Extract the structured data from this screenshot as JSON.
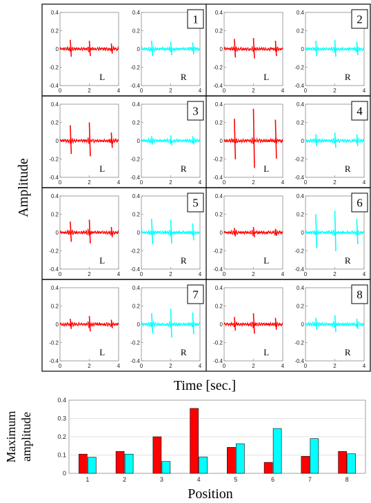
{
  "figure": {
    "y_label_top": "Amplitude",
    "x_label_top": "Time [sec.]",
    "y_label_bottom_line1": "Maximum",
    "y_label_bottom_line2": "amplitude",
    "x_label_bottom": "Position",
    "channel_labels": [
      "L",
      "R"
    ],
    "colors": {
      "left": "#ff0000",
      "right": "#00ffff",
      "axis": "#888888"
    }
  },
  "chart_data": [
    {
      "type": "line",
      "description_of_panels": "8 positions, each with L (red) and R (cyan) time traces",
      "xlim": [
        0,
        4
      ],
      "ylim": [
        -0.4,
        0.4
      ],
      "x_ticks": [
        0,
        2,
        4
      ],
      "y_ticks": [
        0.4,
        0.2,
        0,
        -0.2,
        -0.4
      ],
      "x_tick_labels": [
        "0",
        "2",
        "4"
      ],
      "y_tick_labels": [
        "0.4",
        "0.2",
        "0",
        "-0.2",
        "-0.4"
      ],
      "positions": [
        {
          "label": "1",
          "L": {
            "spikes": [
              [
                0.7,
                0.1
              ],
              [
                2.0,
                0.09
              ],
              [
                3.5,
                0.06
              ]
            ]
          },
          "R": {
            "spikes": [
              [
                0.7,
                0.09
              ],
              [
                2.0,
                0.08
              ],
              [
                3.5,
                0.07
              ]
            ]
          }
        },
        {
          "label": "2",
          "L": {
            "spikes": [
              [
                0.7,
                0.11
              ],
              [
                2.0,
                0.12
              ],
              [
                3.5,
                0.09
              ]
            ]
          },
          "R": {
            "spikes": [
              [
                0.7,
                0.09
              ],
              [
                2.0,
                0.1
              ],
              [
                3.5,
                0.08
              ]
            ]
          }
        },
        {
          "label": "3",
          "L": {
            "spikes": [
              [
                0.7,
                0.17
              ],
              [
                2.0,
                0.2
              ],
              [
                3.5,
                0.09
              ]
            ]
          },
          "R": {
            "spikes": [
              [
                0.7,
                0.05
              ],
              [
                2.0,
                0.06
              ],
              [
                3.5,
                0.05
              ]
            ]
          }
        },
        {
          "label": "4",
          "L": {
            "spikes": [
              [
                0.7,
                0.24
              ],
              [
                2.0,
                0.35
              ],
              [
                3.5,
                0.23
              ]
            ]
          },
          "R": {
            "spikes": [
              [
                0.7,
                0.07
              ],
              [
                2.0,
                0.09
              ],
              [
                3.5,
                0.07
              ]
            ]
          }
        },
        {
          "label": "5",
          "L": {
            "spikes": [
              [
                0.7,
                0.12
              ],
              [
                2.0,
                0.14
              ],
              [
                3.5,
                0.06
              ]
            ]
          },
          "R": {
            "spikes": [
              [
                0.7,
                0.15
              ],
              [
                2.0,
                0.14
              ],
              [
                3.5,
                0.1
              ]
            ]
          }
        },
        {
          "label": "6",
          "L": {
            "spikes": [
              [
                0.7,
                0.05
              ],
              [
                2.0,
                0.06
              ],
              [
                3.5,
                0.04
              ]
            ]
          },
          "R": {
            "spikes": [
              [
                0.7,
                0.2
              ],
              [
                2.0,
                0.24
              ],
              [
                3.5,
                0.15
              ]
            ]
          }
        },
        {
          "label": "7",
          "L": {
            "spikes": [
              [
                0.7,
                0.06
              ],
              [
                2.0,
                0.09
              ],
              [
                3.5,
                0.05
              ]
            ]
          },
          "R": {
            "spikes": [
              [
                0.7,
                0.12
              ],
              [
                2.0,
                0.17
              ],
              [
                3.5,
                0.13
              ]
            ]
          }
        },
        {
          "label": "8",
          "L": {
            "spikes": [
              [
                0.7,
                0.08
              ],
              [
                2.0,
                0.12
              ],
              [
                3.5,
                0.07
              ]
            ]
          },
          "R": {
            "spikes": [
              [
                0.7,
                0.07
              ],
              [
                2.0,
                0.1
              ],
              [
                3.5,
                0.06
              ]
            ]
          }
        }
      ]
    },
    {
      "type": "bar",
      "categories": [
        "1",
        "2",
        "3",
        "4",
        "5",
        "6",
        "7",
        "8"
      ],
      "series": [
        {
          "color": "#ff0000",
          "values": [
            0.105,
            0.12,
            0.2,
            0.355,
            0.142,
            0.06,
            0.093,
            0.12
          ]
        },
        {
          "color": "#00ffff",
          "values": [
            0.088,
            0.105,
            0.065,
            0.09,
            0.162,
            0.245,
            0.19,
            0.107
          ]
        }
      ],
      "ylim": [
        0,
        0.4
      ],
      "y_ticks": [
        0,
        0.1,
        0.2,
        0.3,
        0.4
      ],
      "y_tick_labels": [
        "0",
        "0.1",
        "0.2",
        "0.3",
        "0.4"
      ],
      "grid": true
    }
  ]
}
